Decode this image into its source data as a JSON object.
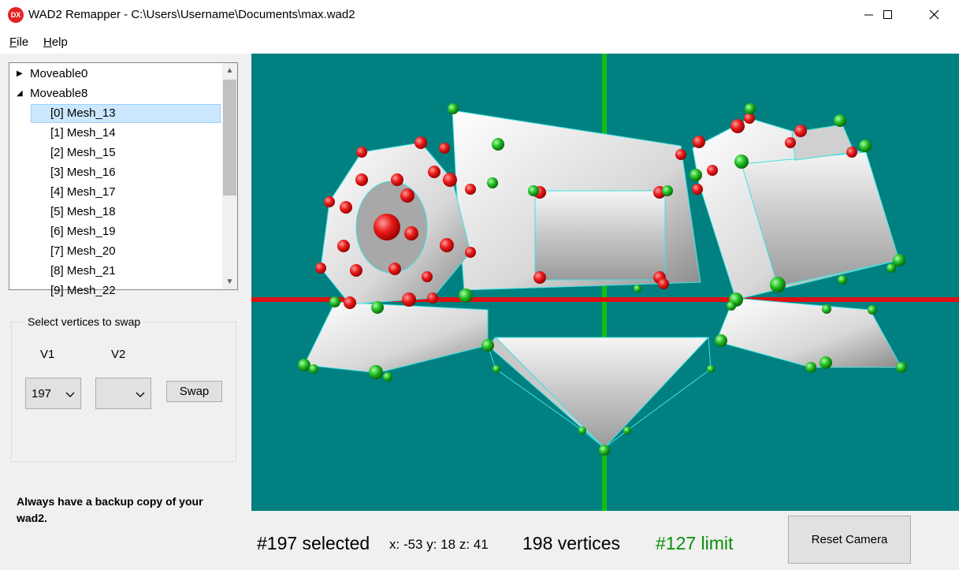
{
  "window": {
    "title": "WAD2 Remapper - C:\\Users\\Username\\Documents\\max.wad2",
    "icon_text": "DX",
    "icon_color": "#e02424"
  },
  "menu": {
    "file": {
      "underline": "F",
      "rest": "ile"
    },
    "help": {
      "underline": "H",
      "rest": "elp"
    }
  },
  "tree": {
    "parents": [
      {
        "label": "Moveable0",
        "expanded": false
      },
      {
        "label": "Moveable8",
        "expanded": true
      }
    ],
    "children": [
      "[0] Mesh_13",
      "[1] Mesh_14",
      "[2] Mesh_15",
      "[3] Mesh_16",
      "[4] Mesh_17",
      "[5] Mesh_18",
      "[6] Mesh_19",
      "[7] Mesh_20",
      "[8] Mesh_21",
      "[9] Mesh_22"
    ],
    "selected_child": "[0] Mesh_13"
  },
  "swap": {
    "legend": "Select vertices to swap",
    "v1_label": "V1",
    "v2_label": "V2",
    "v1_value": "197",
    "v2_value": "",
    "button": "Swap"
  },
  "warning": "Always have a backup copy of your wad2.",
  "status": {
    "selected": "#197 selected",
    "coords": "x: -53 y: 18 z: 41",
    "vertices": "198 vertices",
    "limit": "#127 limit",
    "limit_color": "#0a8f0a"
  },
  "reset_camera": "Reset Camera",
  "viewport": {
    "background": "#008080",
    "axis_x_color": "#e01010",
    "axis_y_color": "#10c010",
    "vertex_selected_color": "#e02020",
    "vertex_normal_color": "#20b020",
    "edge_color": "#40e0e0"
  }
}
